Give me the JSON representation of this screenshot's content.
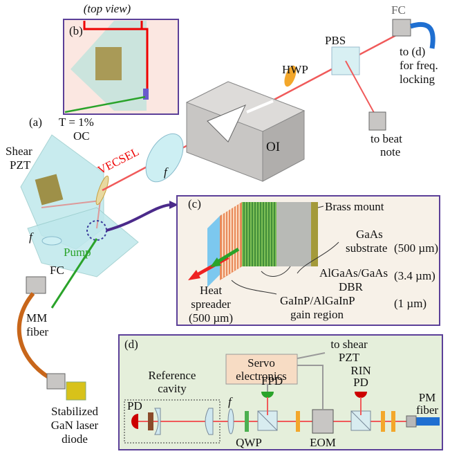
{
  "panel_a": {
    "label": "(a)",
    "oc": [
      "T = 1%",
      "OC"
    ],
    "pzt": [
      "Shear",
      "PZT"
    ],
    "vecsel": "VECSEL",
    "lens_f": "f",
    "pump_lens_f": "f",
    "pump": "Pump",
    "fc": "FC",
    "mm_fiber": [
      "MM",
      "fiber"
    ],
    "diode": [
      "Stabilized",
      "GaN laser",
      "diode"
    ],
    "oi": "OI",
    "hwp": "HWP",
    "pbs": "PBS",
    "fc_out": "FC",
    "to_d": [
      "to (d)",
      "for freq.",
      "locking"
    ],
    "beat": [
      "to beat",
      "note"
    ]
  },
  "panel_b": {
    "caption": "(top view)",
    "label": "(b)"
  },
  "panel_c": {
    "label": "(c)",
    "brass": "Brass mount",
    "gaas": [
      "GaAs",
      "substrate"
    ],
    "gaas_thickness": "(500 µm)",
    "dbr": [
      "AlGaAs/GaAs",
      "DBR"
    ],
    "dbr_thickness": "(3.4 µm)",
    "gain": [
      "GaInP/AlGaInP",
      "gain region"
    ],
    "gain_thickness": "(1 µm)",
    "spreader": [
      "Heat",
      "spreader",
      "(500 µm)"
    ]
  },
  "panel_d": {
    "label": "(d)",
    "servo": [
      "Servo",
      "electronics"
    ],
    "to_pzt": [
      "to shear",
      "PZT"
    ],
    "cavity": [
      "Reference",
      "cavity"
    ],
    "fpd": "FPD",
    "rin": [
      "RIN",
      "PD"
    ],
    "pm_fiber": [
      "PM",
      "fiber"
    ],
    "pd": "PD",
    "lens_f": "f",
    "qwp": "QWP",
    "eom": "EOM"
  }
}
